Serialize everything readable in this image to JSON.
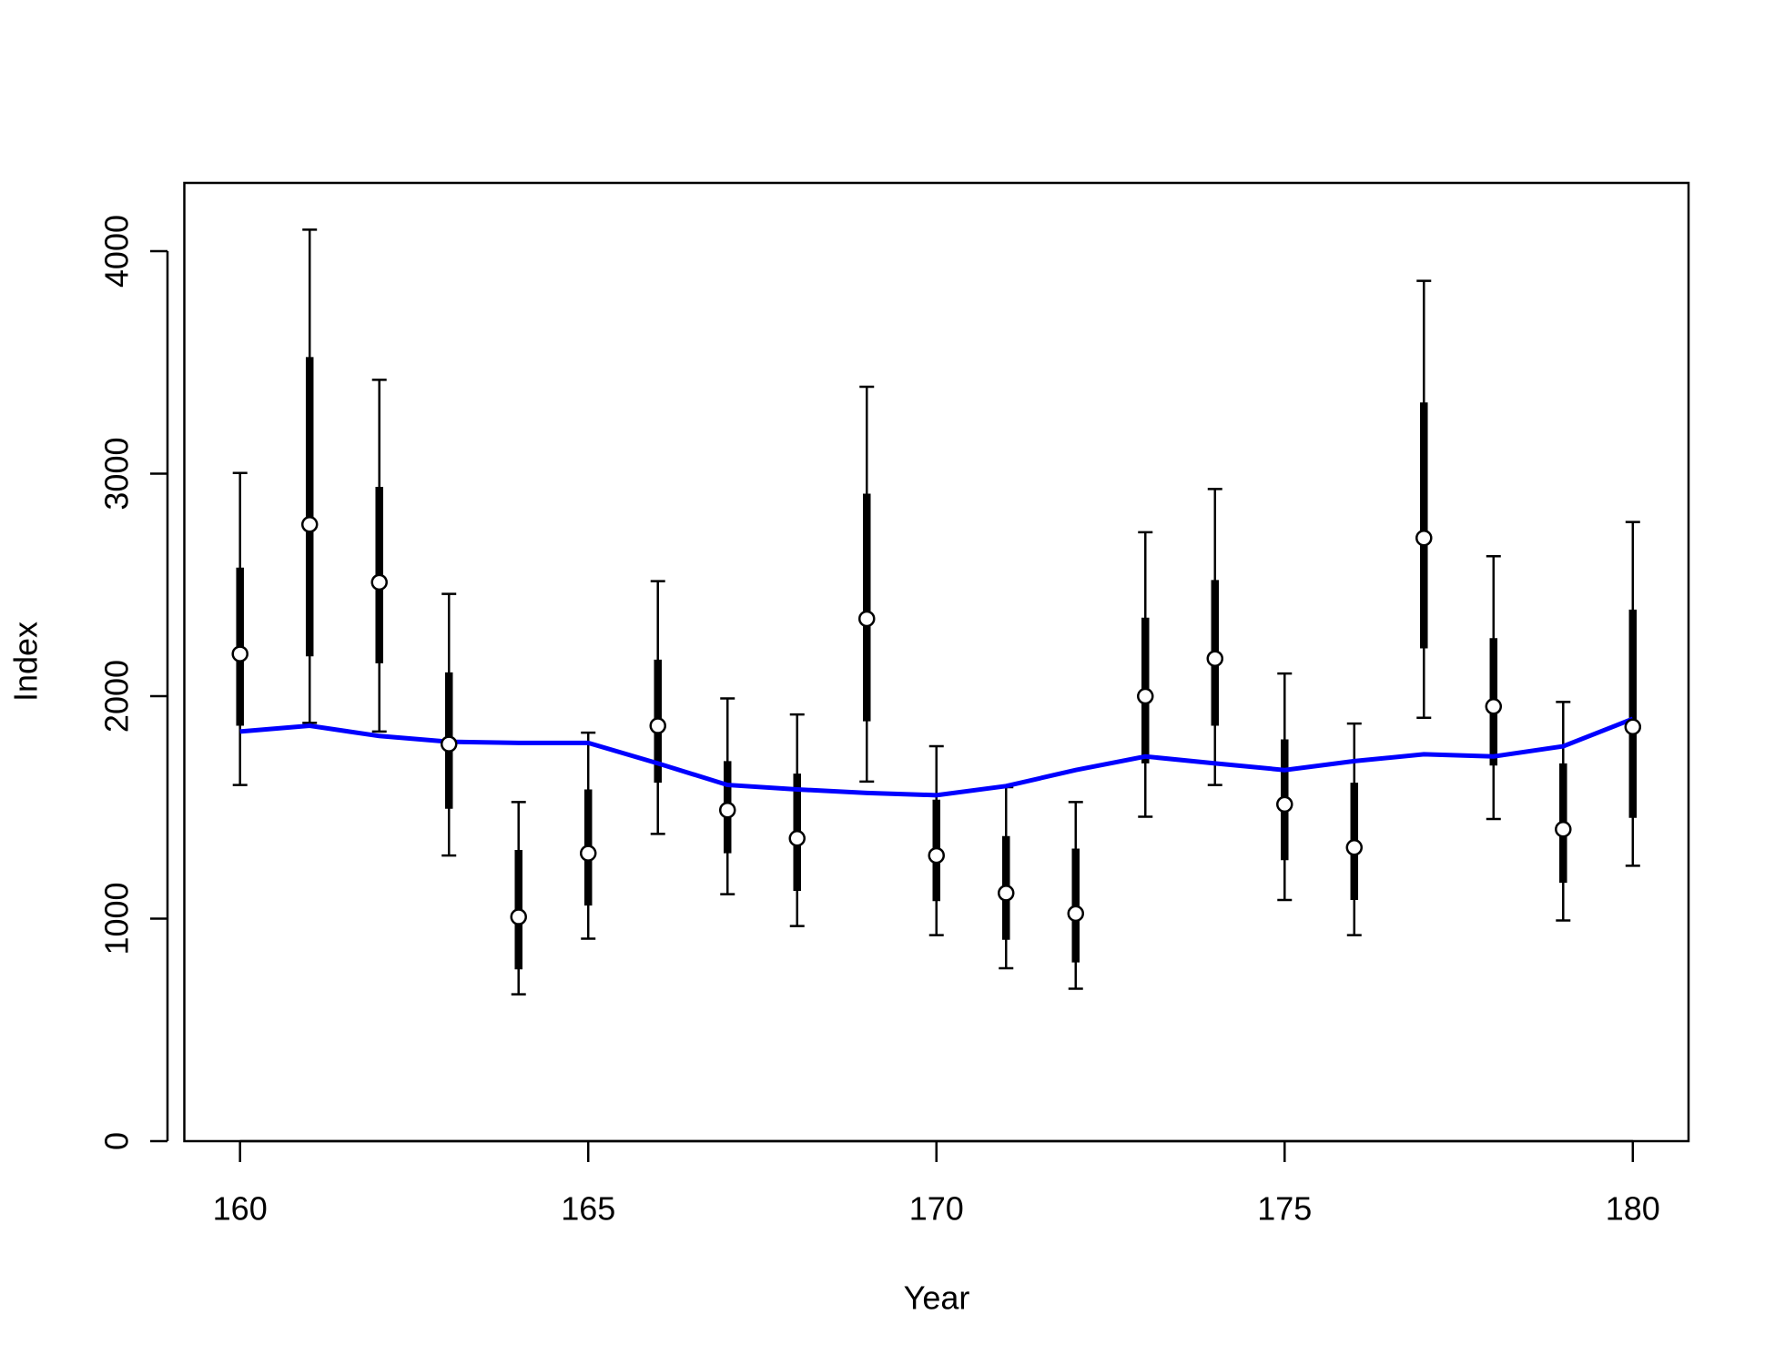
{
  "chart_data": {
    "type": "errorbar",
    "x_label": "Year",
    "y_label": "Index",
    "x": [
      160,
      161,
      162,
      163,
      164,
      165,
      166,
      167,
      168,
      169,
      170,
      171,
      172,
      173,
      174,
      175,
      176,
      177,
      178,
      179,
      180
    ],
    "values": [
      2190,
      2772,
      2512,
      1785,
      1008,
      1294,
      1867,
      1488,
      1361,
      2348,
      1284,
      1115,
      1023,
      2000,
      2169,
      1514,
      1320,
      2711,
      1954,
      1402,
      1862
    ],
    "inner_lower": [
      1867,
      2179,
      2148,
      1494,
      772,
      1059,
      1611,
      1294,
      1125,
      1887,
      1079,
      905,
      803,
      1698,
      1867,
      1263,
      1084,
      2215,
      1688,
      1161,
      1453
    ],
    "inner_upper": [
      2578,
      3524,
      2941,
      2107,
      1309,
      1581,
      2164,
      1708,
      1652,
      2910,
      1535,
      1371,
      1315,
      2353,
      2522,
      1806,
      1611,
      3320,
      2261,
      1698,
      2389
    ],
    "outer_lower": [
      1601,
      1880,
      1841,
      1284,
      660,
      910,
      1381,
      1110,
      967,
      1616,
      926,
      777,
      685,
      1458,
      1601,
      1084,
      926,
      1903,
      1448,
      992,
      1238
    ],
    "outer_upper": [
      3003,
      4097,
      3422,
      2460,
      1524,
      1836,
      2517,
      1990,
      1918,
      3391,
      1775,
      1591,
      1524,
      2737,
      2931,
      2102,
      1877,
      3867,
      2629,
      1974,
      2783
    ],
    "color": "#000000",
    "fit": {
      "values": [
        1841,
        1867,
        1821,
        1795,
        1790,
        1790,
        1698,
        1601,
        1581,
        1565,
        1555,
        1596,
        1668,
        1729,
        1698,
        1668,
        1708,
        1739,
        1729,
        1775,
        1898
      ],
      "color": "#0000ff"
    },
    "xlim": [
      159.2,
      180.8
    ],
    "ylim": [
      0,
      4307
    ],
    "xticks": [
      160,
      165,
      170,
      175,
      180
    ],
    "yticks": [
      0,
      1000,
      2000,
      3000,
      4000
    ]
  }
}
